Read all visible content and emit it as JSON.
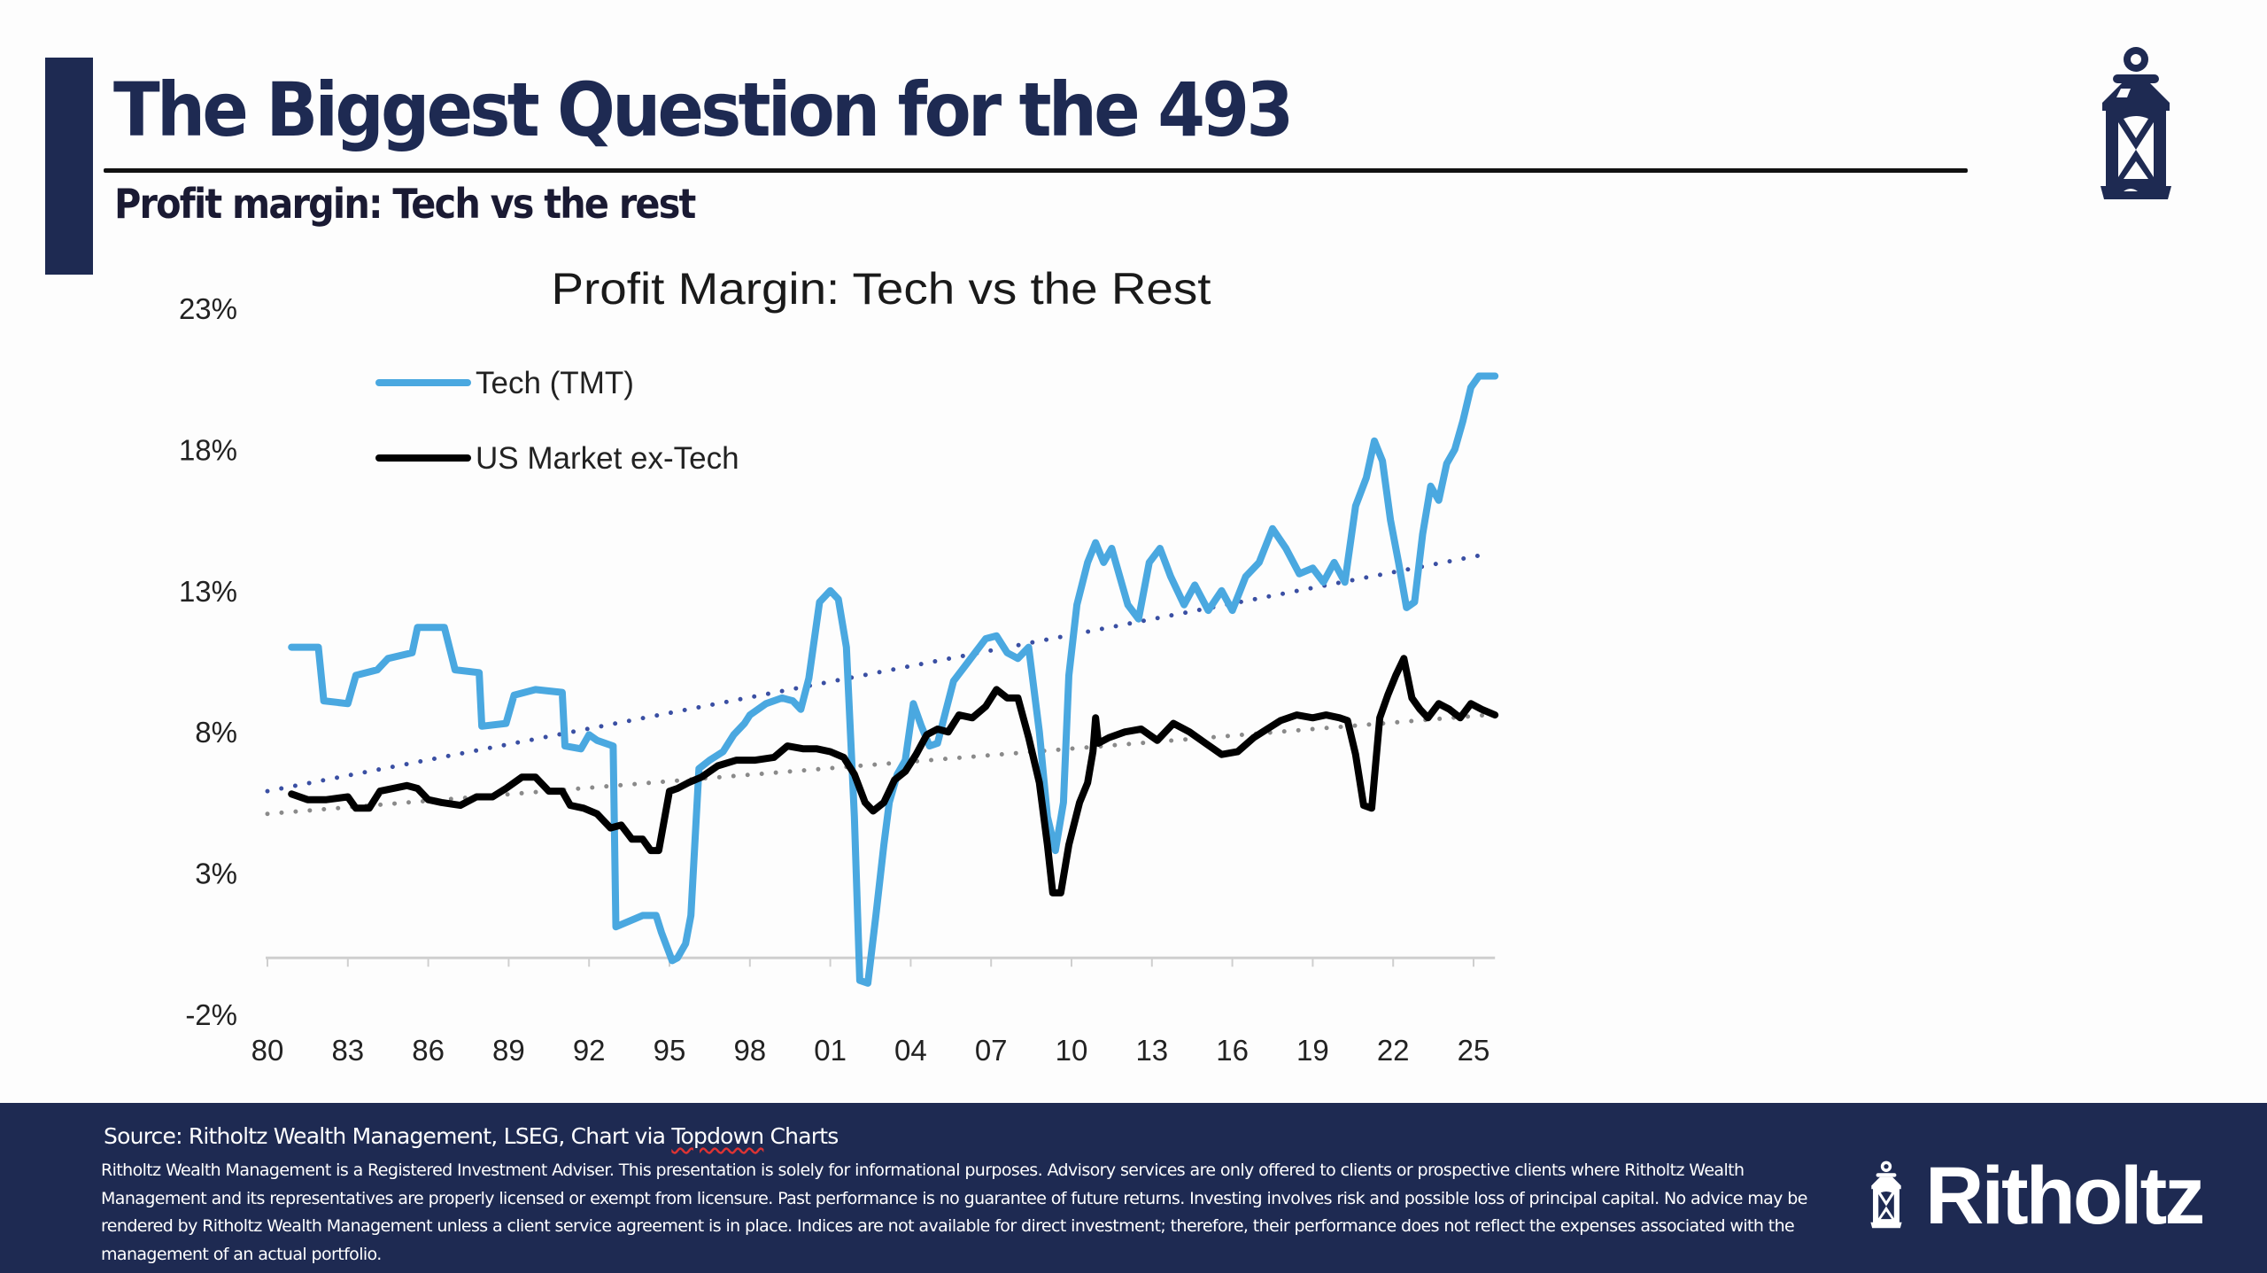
{
  "header": {
    "title": "The Biggest Question for the 493",
    "subtitle": "Profit margin: Tech vs the rest",
    "logo_icon": "lantern-icon"
  },
  "colors": {
    "brand_navy": "#1e2a52",
    "tech_series": "#4aa8e0",
    "ex_tech_series": "#000000",
    "tech_trend": "#3a4fa3",
    "ex_tech_trend": "#8a8a8a"
  },
  "chart_data": {
    "type": "line",
    "title": "Profit Margin: Tech vs the Rest",
    "xlabel": "",
    "ylabel": "",
    "x_tick_labels": [
      "80",
      "83",
      "86",
      "89",
      "92",
      "95",
      "98",
      "01",
      "04",
      "07",
      "10",
      "13",
      "16",
      "19",
      "22",
      "25"
    ],
    "x_tick_years": [
      1980,
      1983,
      1986,
      1989,
      1992,
      1995,
      1998,
      2001,
      2004,
      2007,
      2010,
      2013,
      2016,
      2019,
      2022,
      2025
    ],
    "y_tick_labels": [
      "23%",
      "18%",
      "13%",
      "8%",
      "3%",
      "-2%"
    ],
    "y_ticks": [
      23,
      18,
      13,
      8,
      3,
      -2
    ],
    "ylim": [
      -2,
      23
    ],
    "xlim": [
      1980,
      2025
    ],
    "grid": false,
    "legend_position": "top-left",
    "series": [
      {
        "name": "Tech (TMT)",
        "color": "#4aa8e0",
        "x": [
          1980.9,
          1981.9,
          1982.1,
          1983.0,
          1983.3,
          1984.1,
          1984.5,
          1985.4,
          1985.6,
          1986.6,
          1987.0,
          1987.9,
          1988.0,
          1988.9,
          1989.2,
          1990.0,
          1991.0,
          1991.1,
          1991.7,
          1992.0,
          1992.3,
          1992.9,
          1993.0,
          1993.5,
          1994.0,
          1994.5,
          1994.7,
          1995.1,
          1995.3,
          1995.6,
          1995.8,
          1996.1,
          1996.5,
          1997.0,
          1997.4,
          1997.8,
          1998.0,
          1998.6,
          1999.2,
          1999.6,
          1999.9,
          2000.2,
          2000.6,
          2001.0,
          2001.3,
          2001.6,
          2001.9,
          2002.1,
          2002.4,
          2002.7,
          2003.0,
          2003.2,
          2003.5,
          2003.8,
          2004.1,
          2004.4,
          2004.7,
          2005.0,
          2005.3,
          2005.6,
          2006.0,
          2006.4,
          2006.8,
          2007.2,
          2007.6,
          2008.0,
          2008.4,
          2008.8,
          2009.1,
          2009.4,
          2009.7,
          2009.9,
          2010.2,
          2010.6,
          2010.9,
          2011.2,
          2011.5,
          2011.8,
          2012.1,
          2012.5,
          2012.9,
          2013.3,
          2013.7,
          2014.2,
          2014.6,
          2015.1,
          2015.6,
          2016.0,
          2016.5,
          2017.0,
          2017.5,
          2018.0,
          2018.5,
          2019.0,
          2019.4,
          2019.8,
          2020.2,
          2020.6,
          2021.0,
          2021.3,
          2021.6,
          2021.9,
          2022.2,
          2022.5,
          2022.8,
          2023.1,
          2023.4,
          2023.7,
          2024.0,
          2024.3,
          2024.6,
          2024.9,
          2025.2,
          2025.5,
          2025.8
        ],
        "values": [
          11.0,
          11.0,
          9.1,
          9.0,
          10.0,
          10.2,
          10.6,
          10.8,
          11.7,
          11.7,
          10.2,
          10.1,
          8.2,
          8.3,
          9.3,
          9.5,
          9.4,
          7.5,
          7.4,
          7.9,
          7.7,
          7.5,
          1.1,
          1.3,
          1.5,
          1.5,
          0.9,
          -0.1,
          0.0,
          0.5,
          1.5,
          6.7,
          7.0,
          7.3,
          7.9,
          8.3,
          8.6,
          9.0,
          9.2,
          9.1,
          8.8,
          9.9,
          12.6,
          13.0,
          12.7,
          11.0,
          5.0,
          -0.8,
          -0.9,
          1.5,
          4.0,
          5.5,
          6.5,
          7.0,
          9.0,
          8.2,
          7.5,
          7.6,
          8.7,
          9.8,
          10.3,
          10.8,
          11.3,
          11.4,
          10.8,
          10.6,
          11.0,
          8.0,
          5.0,
          3.8,
          5.5,
          10.0,
          12.5,
          14.0,
          14.7,
          14.0,
          14.5,
          13.5,
          12.5,
          12.0,
          14.0,
          14.5,
          13.5,
          12.5,
          13.2,
          12.3,
          13.0,
          12.3,
          13.5,
          14.0,
          15.2,
          14.5,
          13.6,
          13.8,
          13.3,
          14.0,
          13.3,
          16.0,
          17.0,
          18.3,
          17.6,
          15.5,
          14.0,
          12.4,
          12.6,
          15.0,
          16.7,
          16.2,
          17.5,
          18.0,
          19.0,
          20.2,
          20.6,
          20.6,
          20.6
        ]
      },
      {
        "name": "US Market ex-Tech",
        "color": "#000000",
        "x": [
          1980.9,
          1981.5,
          1982.2,
          1983.0,
          1983.3,
          1983.8,
          1984.2,
          1985.2,
          1985.6,
          1986.0,
          1986.5,
          1987.2,
          1987.8,
          1988.4,
          1988.9,
          1989.5,
          1990.0,
          1990.5,
          1991.0,
          1991.3,
          1991.8,
          1992.3,
          1992.8,
          1993.2,
          1993.6,
          1994.0,
          1994.3,
          1994.6,
          1995.0,
          1995.3,
          1995.7,
          1996.2,
          1996.8,
          1997.5,
          1998.2,
          1998.9,
          1999.4,
          2000.0,
          2000.5,
          2001.0,
          2001.5,
          2001.9,
          2002.3,
          2002.6,
          2003.0,
          2003.4,
          2003.8,
          2004.2,
          2004.6,
          2005.0,
          2005.4,
          2005.8,
          2006.3,
          2006.8,
          2007.2,
          2007.6,
          2008.0,
          2008.4,
          2008.8,
          2009.1,
          2009.3,
          2009.6,
          2009.9,
          2010.3,
          2010.6,
          2010.8,
          2010.9,
          2011.0,
          2011.4,
          2012.0,
          2012.6,
          2013.2,
          2013.8,
          2014.4,
          2015.0,
          2015.6,
          2016.2,
          2016.8,
          2017.3,
          2017.8,
          2018.4,
          2019.0,
          2019.5,
          2020.0,
          2020.3,
          2020.6,
          2020.9,
          2021.2,
          2021.5,
          2021.8,
          2022.1,
          2022.4,
          2022.7,
          2023.0,
          2023.3,
          2023.7,
          2024.1,
          2024.5,
          2024.9,
          2025.3,
          2025.8
        ],
        "values": [
          5.8,
          5.6,
          5.6,
          5.7,
          5.3,
          5.3,
          5.9,
          6.1,
          6.0,
          5.6,
          5.5,
          5.4,
          5.7,
          5.7,
          6.0,
          6.4,
          6.4,
          5.9,
          5.9,
          5.4,
          5.3,
          5.1,
          4.6,
          4.7,
          4.2,
          4.2,
          3.8,
          3.8,
          5.9,
          6.0,
          6.2,
          6.4,
          6.8,
          7.0,
          7.0,
          7.1,
          7.5,
          7.4,
          7.4,
          7.3,
          7.1,
          6.5,
          5.5,
          5.2,
          5.5,
          6.3,
          6.6,
          7.2,
          7.9,
          8.1,
          8.0,
          8.6,
          8.5,
          8.9,
          9.5,
          9.2,
          9.2,
          7.8,
          6.2,
          4.0,
          2.3,
          2.3,
          4.0,
          5.5,
          6.2,
          7.3,
          8.5,
          7.6,
          7.8,
          8.0,
          8.1,
          7.7,
          8.3,
          8.0,
          7.6,
          7.2,
          7.3,
          7.8,
          8.1,
          8.4,
          8.6,
          8.5,
          8.6,
          8.5,
          8.4,
          7.2,
          5.4,
          5.3,
          8.5,
          9.3,
          10.0,
          10.6,
          9.2,
          8.8,
          8.5,
          9.0,
          8.8,
          8.5,
          9.0,
          8.8,
          8.6
        ]
      },
      {
        "name": "Tech trend",
        "color": "#3a4fa3",
        "style": "dotted",
        "x": [
          1980,
          2025.5
        ],
        "values": [
          5.9,
          14.3
        ]
      },
      {
        "name": "ex-Tech trend",
        "color": "#8a8a8a",
        "style": "dotted",
        "x": [
          1980,
          2025.5
        ],
        "values": [
          5.1,
          8.6
        ]
      }
    ]
  },
  "footer": {
    "source_prefix": "Source: Ritholtz Wealth Management, LSEG, Chart via ",
    "source_flagged_word": "Topdown",
    "source_suffix": " Charts",
    "disclaimer": "Ritholtz Wealth Management is a Registered Investment Adviser. This presentation is solely for informational purposes. Advisory services are only offered to clients or prospective clients where Ritholtz Wealth Management and its representatives are properly licensed or exempt from licensure. Past performance is no guarantee of future returns. Investing involves risk and possible loss of principal capital. No advice may be rendered by Ritholtz Wealth Management unless a client service agreement is in place. Indices are not available for direct investment; therefore, their performance does not reflect the expenses associated with the management of an actual portfolio.",
    "logo_text": "Ritholtz"
  }
}
